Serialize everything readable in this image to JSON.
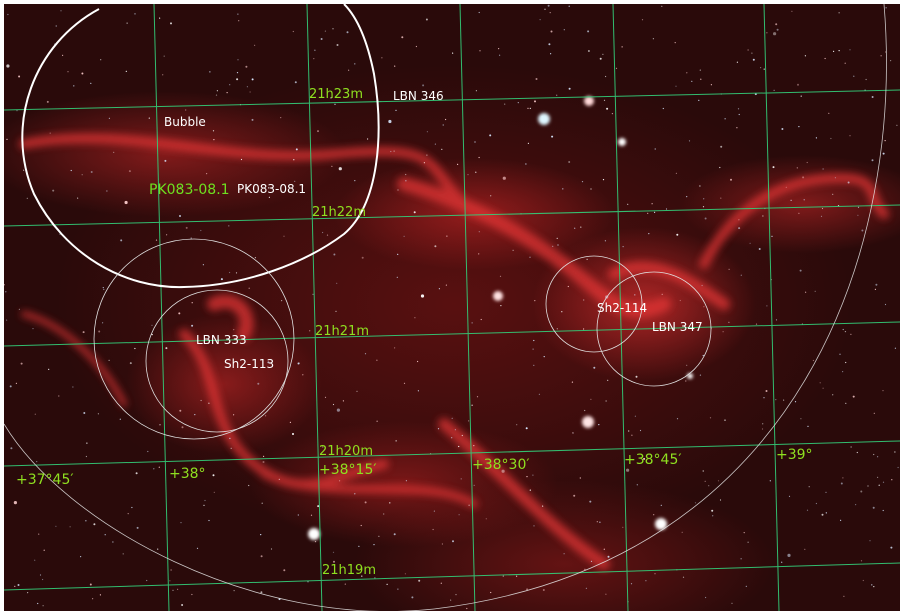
{
  "labels": {
    "bubble": "Bubble",
    "pk_green": "PK083-08.1",
    "pk_white": "PK083-08.1",
    "lbn346": "LBN 346",
    "lbn333": "LBN 333",
    "sh2_113": "Sh2-113",
    "sh2_114": "Sh2-114",
    "lbn347": "LBN 347"
  },
  "ra_labels": {
    "h23": "21h23m",
    "h22": "21h22m",
    "h21": "21h21m",
    "h20": "21h20m",
    "h19": "21h19m"
  },
  "dec_labels": {
    "d3745": "+37°45′",
    "d38": "+38°",
    "d3815": "+38°15′",
    "d3830": "+38°30′",
    "d3845": "+38°45′",
    "d39": "+39°"
  },
  "colors": {
    "grid": "#33d07a",
    "grid_label": "#8fe020",
    "marker": "#e8e8e8",
    "background": "#2a0a0a",
    "nebula": "#d83030"
  }
}
